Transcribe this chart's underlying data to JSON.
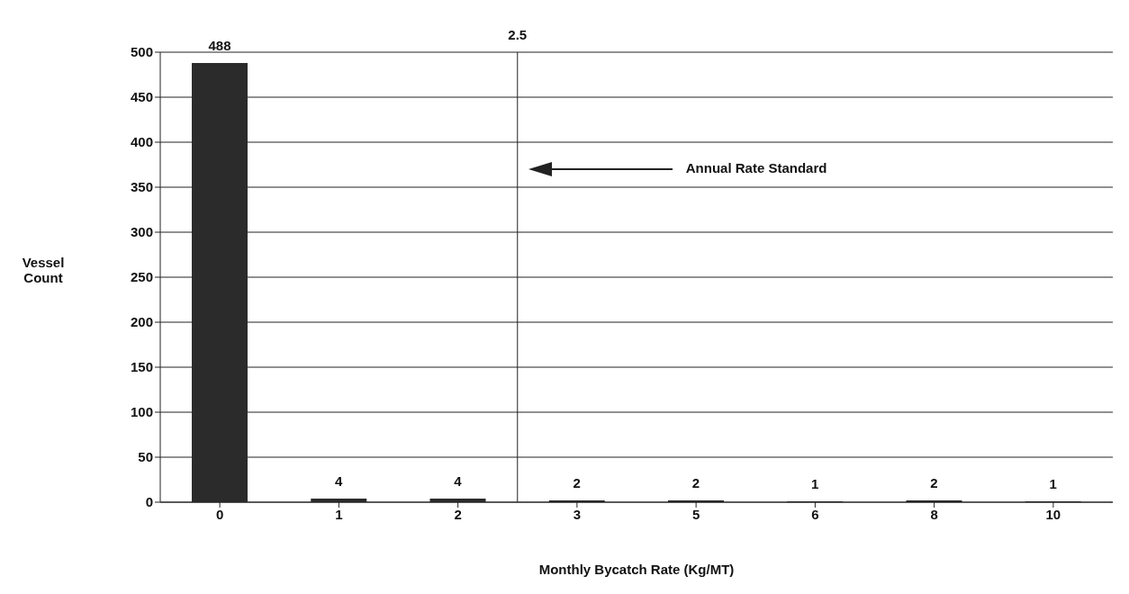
{
  "chart_data": {
    "type": "bar",
    "xlabel": "Monthly Bycatch Rate (Kg/MT)",
    "ylabel": "Vessel Count",
    "categories": [
      "0",
      "1",
      "2",
      "3",
      "5",
      "6",
      "8",
      "10"
    ],
    "values": [
      488,
      4,
      4,
      2,
      2,
      1,
      2,
      1
    ],
    "color": "#2b2b2b",
    "data_labels": true,
    "ylim": [
      0,
      500
    ],
    "yticks": [
      0,
      50,
      100,
      150,
      200,
      250,
      300,
      350,
      400,
      450,
      500
    ],
    "grid": "y",
    "annotations": [
      "2.5",
      "Annual Rate Standard"
    ]
  }
}
